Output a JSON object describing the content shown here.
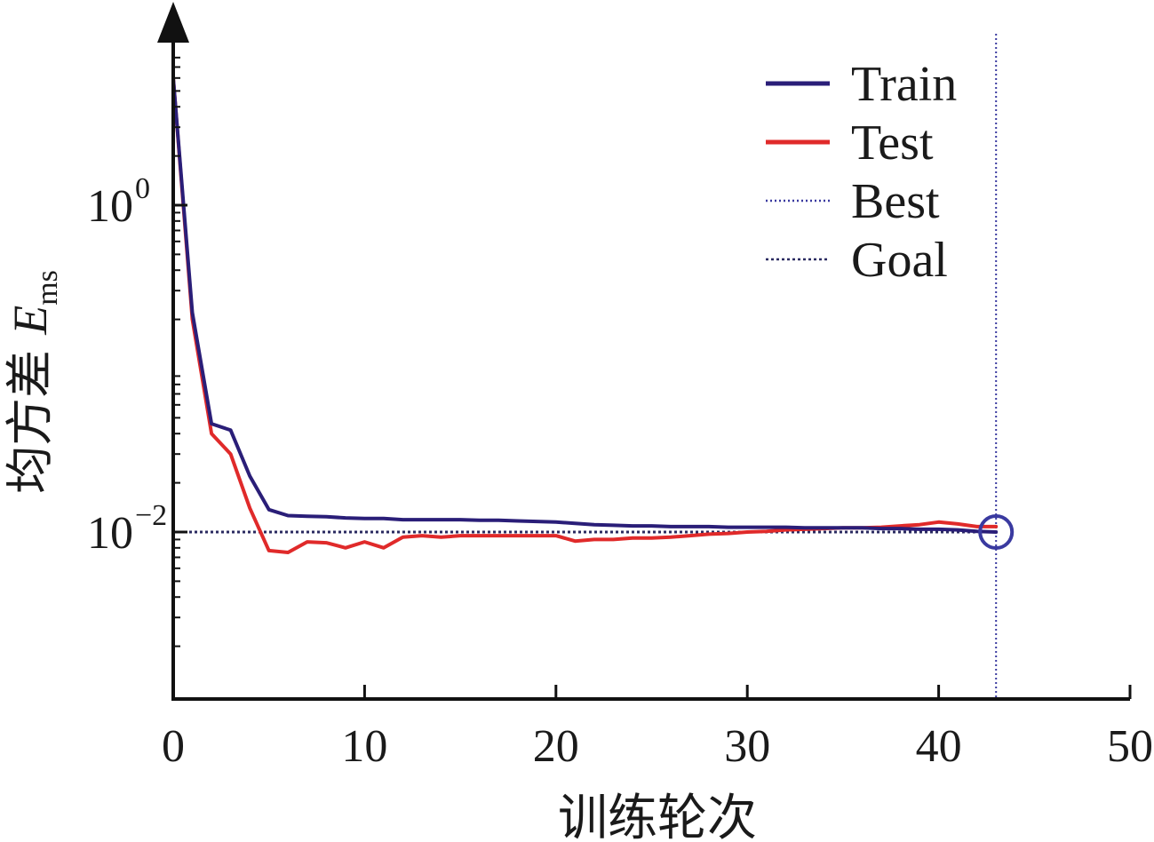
{
  "chart_data": {
    "type": "line",
    "xlabel": "训练轮次",
    "ylabel_prefix": "均方差 ",
    "ylabel_var": "E",
    "ylabel_sub": "ms",
    "x_ticks": [
      0,
      10,
      20,
      30,
      40,
      50
    ],
    "x_tick_labels": [
      "0",
      "10",
      "20",
      "30",
      "40",
      "50"
    ],
    "y_ticks": [
      {
        "value": 1,
        "base": "10",
        "exp": "0"
      },
      {
        "value": 0.01,
        "base": "10",
        "exp": "−2"
      }
    ],
    "xlim": [
      0,
      50
    ],
    "ylim": [
      0.00018,
      5
    ],
    "y_scale": "log",
    "grid": false,
    "legend_position": "top-right",
    "series": [
      {
        "name": "Train",
        "color": "#2a1e78",
        "style": "solid",
        "x": [
          0,
          1,
          2,
          3,
          4,
          5,
          6,
          7,
          8,
          9,
          10,
          11,
          12,
          13,
          14,
          15,
          16,
          17,
          18,
          19,
          20,
          21,
          22,
          23,
          24,
          25,
          26,
          27,
          28,
          29,
          30,
          31,
          32,
          33,
          34,
          35,
          36,
          37,
          38,
          39,
          40,
          41,
          42,
          43
        ],
        "y": [
          6.0,
          0.22,
          0.046,
          0.042,
          0.022,
          0.0137,
          0.0126,
          0.0125,
          0.0124,
          0.0122,
          0.0121,
          0.0121,
          0.0119,
          0.0119,
          0.0119,
          0.0119,
          0.0118,
          0.0118,
          0.0117,
          0.0116,
          0.0115,
          0.0113,
          0.0111,
          0.011,
          0.0109,
          0.0109,
          0.0108,
          0.0108,
          0.0108,
          0.0107,
          0.0107,
          0.0107,
          0.0107,
          0.0106,
          0.0106,
          0.0106,
          0.0106,
          0.0105,
          0.0105,
          0.0104,
          0.0104,
          0.0103,
          0.0101,
          0.01
        ]
      },
      {
        "name": "Test",
        "color": "#e02a2a",
        "style": "solid",
        "x": [
          0,
          1,
          2,
          3,
          4,
          5,
          6,
          7,
          8,
          9,
          10,
          11,
          12,
          13,
          14,
          15,
          16,
          17,
          18,
          19,
          20,
          21,
          22,
          23,
          24,
          25,
          26,
          27,
          28,
          29,
          30,
          31,
          32,
          33,
          34,
          35,
          36,
          37,
          38,
          39,
          40,
          41,
          42,
          43
        ],
        "y": [
          6.0,
          0.2,
          0.04,
          0.03,
          0.014,
          0.0077,
          0.0075,
          0.0087,
          0.0086,
          0.008,
          0.0087,
          0.008,
          0.0093,
          0.0095,
          0.0093,
          0.0095,
          0.0095,
          0.0095,
          0.0095,
          0.0095,
          0.0095,
          0.0088,
          0.009,
          0.009,
          0.0092,
          0.0092,
          0.0093,
          0.0095,
          0.0097,
          0.0098,
          0.01,
          0.0101,
          0.0103,
          0.0104,
          0.0105,
          0.0106,
          0.0106,
          0.0107,
          0.0109,
          0.0111,
          0.0115,
          0.0112,
          0.0108,
          0.0108
        ]
      }
    ],
    "best": {
      "name": "Best",
      "x": 43,
      "y": 0.01,
      "color": "#3a3aa0",
      "style": "dotted",
      "marker": "circle"
    },
    "goal": {
      "name": "Goal",
      "y": 0.01,
      "color": "#2a2a60",
      "style": "dotted"
    }
  }
}
